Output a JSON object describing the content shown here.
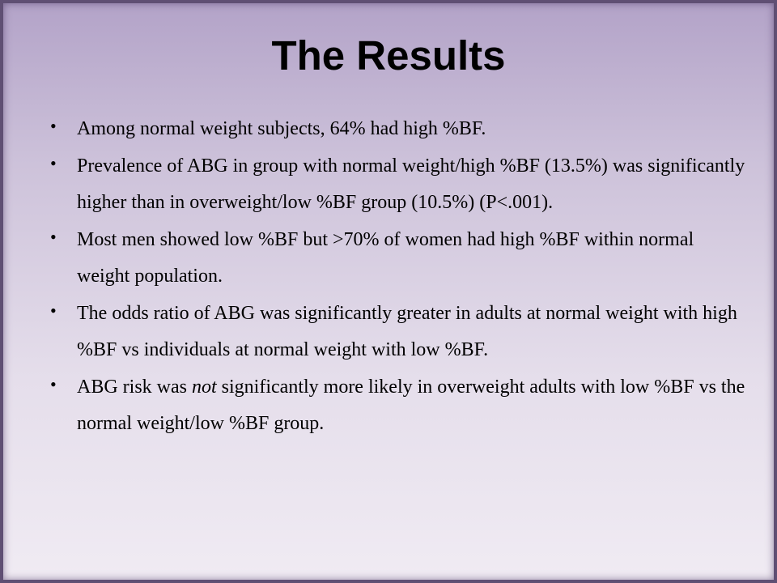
{
  "slide": {
    "title": "The Results",
    "bullets": [
      {
        "before": "Among normal weight subjects, 64% had high %BF.",
        "emphasis": "",
        "after": ""
      },
      {
        "before": "Prevalence of ABG in group with normal weight/high %BF (13.5%) was significantly higher than in overweight/low %BF group (10.5%) (P<.001).",
        "emphasis": "",
        "after": ""
      },
      {
        "before": "Most men showed low %BF but >70% of women had high %BF within normal weight population.",
        "emphasis": "",
        "after": ""
      },
      {
        "before": "The odds ratio of ABG was significantly greater in adults at normal weight with high %BF vs individuals at normal weight with low %BF.",
        "emphasis": "",
        "after": ""
      },
      {
        "before": "ABG risk was ",
        "emphasis": "not",
        "after": " significantly more likely in overweight adults with low %BF vs the normal weight/low %BF group."
      }
    ],
    "bullet_symbol": "•"
  }
}
